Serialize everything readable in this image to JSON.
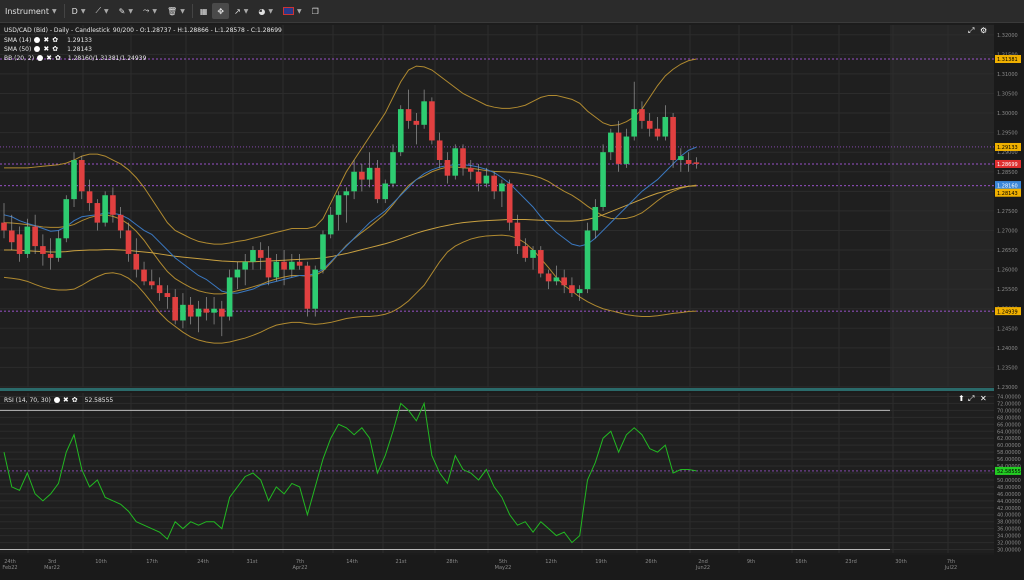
{
  "toolbar": {
    "instrument_label": "Instrument",
    "timeframe_label": "D"
  },
  "main_pane": {
    "header": "USD/CAD (Bid) - Daily - Candlestick",
    "ohlc": "90/200 - O:1.28737 - H:1.28866 - L:1.28578 - C:1.28699",
    "sma14_label": "SMA (14)",
    "sma14_value": "1.29133",
    "sma50_label": "SMA (50)",
    "sma50_value": "1.28143",
    "bb_label": "BB (20, 2)",
    "bb_value": "1.28160/1.31381/1.24939",
    "price_ticks": [
      "1.32000",
      "1.31500",
      "1.31000",
      "1.30500",
      "1.30000",
      "1.29500",
      "1.29000",
      "1.28500",
      "1.28000",
      "1.27500",
      "1.27000",
      "1.26500",
      "1.26000",
      "1.25500",
      "1.25000",
      "1.24500",
      "1.24000",
      "1.23500",
      "1.23000"
    ],
    "markers": [
      {
        "label": "1.31381",
        "color": "#f0b000",
        "text_color": "#000000"
      },
      {
        "label": "1.29133",
        "color": "#f0b000",
        "text_color": "#000000"
      },
      {
        "label": "1.28699",
        "color": "#e03030",
        "text_color": "#ffffff"
      },
      {
        "label": "1.28160",
        "color": "#3a86d8",
        "text_color": "#ffffff"
      },
      {
        "label": "1.28143",
        "color": "#f0b000",
        "text_color": "#000000"
      },
      {
        "label": "1.24939",
        "color": "#f0b000",
        "text_color": "#000000"
      }
    ]
  },
  "rsi_pane": {
    "label": "RSI (14, 70, 30)",
    "value": "52.58555",
    "ticks": [
      "74.00000",
      "72.00000",
      "70.00000",
      "68.00000",
      "66.00000",
      "64.00000",
      "62.00000",
      "60.00000",
      "58.00000",
      "56.00000",
      "54.00000",
      "52.00000",
      "50.00000",
      "48.00000",
      "46.00000",
      "44.00000",
      "42.00000",
      "40.00000",
      "38.00000",
      "36.00000",
      "34.00000",
      "32.00000",
      "30.00000"
    ],
    "marker": {
      "label": "52.58555",
      "color": "#22cc22"
    }
  },
  "x_axis": {
    "labels": [
      "24th",
      "3rd",
      "10th",
      "17th",
      "24th",
      "31st",
      "7th",
      "14th",
      "21st",
      "28th",
      "5th",
      "12th",
      "19th",
      "26th",
      "2nd",
      "9th",
      "16th",
      "23rd",
      "30th",
      "7th"
    ],
    "sub_labels": [
      "Feb22",
      "Mar22",
      "",
      "",
      "",
      "",
      "Apr22",
      "",
      "",
      "",
      "May22",
      "",
      "",
      "",
      "Jun22",
      "",
      "",
      "",
      "",
      "Jul22"
    ]
  },
  "chart_data": {
    "type": "candlestick",
    "instrument": "USD/CAD (Bid)",
    "timeframe": "Daily",
    "ylim": [
      1.23,
      1.3225
    ],
    "candles": [
      [
        1.272,
        1.277,
        1.268,
        1.27
      ],
      [
        1.27,
        1.274,
        1.265,
        1.267
      ],
      [
        1.269,
        1.271,
        1.262,
        1.264
      ],
      [
        1.264,
        1.273,
        1.263,
        1.271
      ],
      [
        1.271,
        1.274,
        1.264,
        1.266
      ],
      [
        1.266,
        1.269,
        1.261,
        1.264
      ],
      [
        1.264,
        1.268,
        1.26,
        1.263
      ],
      [
        1.263,
        1.27,
        1.262,
        1.268
      ],
      [
        1.268,
        1.279,
        1.267,
        1.278
      ],
      [
        1.278,
        1.29,
        1.276,
        1.288
      ],
      [
        1.288,
        1.289,
        1.278,
        1.28
      ],
      [
        1.28,
        1.283,
        1.275,
        1.277
      ],
      [
        1.277,
        1.278,
        1.27,
        1.272
      ],
      [
        1.272,
        1.28,
        1.271,
        1.279
      ],
      [
        1.279,
        1.281,
        1.272,
        1.274
      ],
      [
        1.274,
        1.276,
        1.268,
        1.27
      ],
      [
        1.27,
        1.272,
        1.262,
        1.264
      ],
      [
        1.264,
        1.268,
        1.258,
        1.26
      ],
      [
        1.26,
        1.262,
        1.256,
        1.257
      ],
      [
        1.257,
        1.26,
        1.255,
        1.256
      ],
      [
        1.256,
        1.258,
        1.252,
        1.254
      ],
      [
        1.254,
        1.256,
        1.25,
        1.253
      ],
      [
        1.253,
        1.255,
        1.246,
        1.247
      ],
      [
        1.247,
        1.254,
        1.245,
        1.251
      ],
      [
        1.251,
        1.253,
        1.246,
        1.248
      ],
      [
        1.248,
        1.252,
        1.244,
        1.25
      ],
      [
        1.25,
        1.253,
        1.247,
        1.249
      ],
      [
        1.249,
        1.253,
        1.246,
        1.25
      ],
      [
        1.25,
        1.252,
        1.243,
        1.248
      ],
      [
        1.248,
        1.26,
        1.247,
        1.258
      ],
      [
        1.258,
        1.262,
        1.255,
        1.26
      ],
      [
        1.26,
        1.264,
        1.256,
        1.262
      ],
      [
        1.262,
        1.266,
        1.26,
        1.265
      ],
      [
        1.265,
        1.267,
        1.26,
        1.263
      ],
      [
        1.263,
        1.266,
        1.256,
        1.258
      ],
      [
        1.258,
        1.264,
        1.257,
        1.262
      ],
      [
        1.262,
        1.265,
        1.256,
        1.26
      ],
      [
        1.26,
        1.264,
        1.258,
        1.262
      ],
      [
        1.262,
        1.264,
        1.26,
        1.261
      ],
      [
        1.261,
        1.262,
        1.248,
        1.25
      ],
      [
        1.25,
        1.261,
        1.248,
        1.26
      ],
      [
        1.26,
        1.27,
        1.259,
        1.269
      ],
      [
        1.269,
        1.276,
        1.268,
        1.274
      ],
      [
        1.274,
        1.28,
        1.27,
        1.279
      ],
      [
        1.279,
        1.281,
        1.272,
        1.28
      ],
      [
        1.28,
        1.288,
        1.278,
        1.285
      ],
      [
        1.285,
        1.287,
        1.28,
        1.283
      ],
      [
        1.283,
        1.29,
        1.281,
        1.286
      ],
      [
        1.286,
        1.288,
        1.277,
        1.278
      ],
      [
        1.278,
        1.283,
        1.277,
        1.282
      ],
      [
        1.282,
        1.292,
        1.281,
        1.29
      ],
      [
        1.29,
        1.302,
        1.289,
        1.301
      ],
      [
        1.301,
        1.306,
        1.296,
        1.298
      ],
      [
        1.298,
        1.3,
        1.292,
        1.297
      ],
      [
        1.297,
        1.306,
        1.296,
        1.303
      ],
      [
        1.303,
        1.304,
        1.292,
        1.293
      ],
      [
        1.293,
        1.295,
        1.286,
        1.288
      ],
      [
        1.288,
        1.29,
        1.282,
        1.284
      ],
      [
        1.284,
        1.292,
        1.283,
        1.291
      ],
      [
        1.291,
        1.292,
        1.284,
        1.286
      ],
      [
        1.286,
        1.288,
        1.283,
        1.285
      ],
      [
        1.285,
        1.287,
        1.28,
        1.282
      ],
      [
        1.282,
        1.286,
        1.281,
        1.284
      ],
      [
        1.284,
        1.285,
        1.278,
        1.28
      ],
      [
        1.28,
        1.283,
        1.276,
        1.282
      ],
      [
        1.282,
        1.283,
        1.27,
        1.272
      ],
      [
        1.272,
        1.274,
        1.264,
        1.266
      ],
      [
        1.266,
        1.268,
        1.262,
        1.263
      ],
      [
        1.263,
        1.266,
        1.26,
        1.265
      ],
      [
        1.265,
        1.266,
        1.258,
        1.259
      ],
      [
        1.259,
        1.26,
        1.255,
        1.257
      ],
      [
        1.257,
        1.261,
        1.256,
        1.258
      ],
      [
        1.258,
        1.26,
        1.254,
        1.256
      ],
      [
        1.256,
        1.258,
        1.253,
        1.254
      ],
      [
        1.254,
        1.256,
        1.252,
        1.255
      ],
      [
        1.255,
        1.272,
        1.254,
        1.27
      ],
      [
        1.27,
        1.278,
        1.268,
        1.276
      ],
      [
        1.276,
        1.292,
        1.275,
        1.29
      ],
      [
        1.29,
        1.296,
        1.288,
        1.295
      ],
      [
        1.295,
        1.298,
        1.285,
        1.287
      ],
      [
        1.287,
        1.296,
        1.286,
        1.294
      ],
      [
        1.294,
        1.308,
        1.293,
        1.301
      ],
      [
        1.301,
        1.303,
        1.296,
        1.298
      ],
      [
        1.298,
        1.3,
        1.294,
        1.296
      ],
      [
        1.296,
        1.299,
        1.293,
        1.294
      ],
      [
        1.294,
        1.302,
        1.293,
        1.299
      ],
      [
        1.299,
        1.3,
        1.286,
        1.288
      ],
      [
        1.288,
        1.291,
        1.285,
        1.289
      ],
      [
        1.288,
        1.29,
        1.285,
        1.287
      ],
      [
        1.2874,
        1.2887,
        1.2858,
        1.287
      ]
    ],
    "rsi_values": [
      58,
      48,
      47,
      52,
      46,
      44,
      46,
      49,
      58,
      63,
      53,
      48,
      50,
      45,
      44,
      43,
      41,
      38,
      37,
      36,
      35,
      33,
      38,
      36,
      38,
      37,
      38,
      38,
      36,
      45,
      48,
      51,
      52,
      50,
      44,
      48,
      46,
      49,
      48,
      40,
      48,
      56,
      62,
      66,
      65,
      63,
      65,
      62,
      52,
      57,
      64,
      72,
      70,
      67,
      72,
      57,
      52,
      49,
      57,
      53,
      52,
      50,
      53,
      48,
      45,
      40,
      37,
      38,
      35,
      38,
      36,
      34,
      35,
      32,
      34,
      50,
      55,
      62,
      64,
      58,
      63,
      65,
      63,
      59,
      58,
      60,
      52,
      53,
      53,
      52.6
    ],
    "sma14": [
      1.274,
      1.2735,
      1.2725,
      1.2718,
      1.2712,
      1.2705,
      1.2698,
      1.27,
      1.271,
      1.2725,
      1.2735,
      1.2738,
      1.274,
      1.2745,
      1.2744,
      1.274,
      1.273,
      1.2715,
      1.27,
      1.269,
      1.267,
      1.265,
      1.263,
      1.2615,
      1.26,
      1.2585,
      1.2575,
      1.256,
      1.2545,
      1.254,
      1.254,
      1.2545,
      1.255,
      1.256,
      1.2565,
      1.257,
      1.2575,
      1.258,
      1.2585,
      1.2585,
      1.259,
      1.26,
      1.262,
      1.264,
      1.266,
      1.268,
      1.27,
      1.272,
      1.2735,
      1.275,
      1.277,
      1.279,
      1.281,
      1.283,
      1.2845,
      1.2855,
      1.2862,
      1.2866,
      1.2868,
      1.2868,
      1.2866,
      1.2862,
      1.2856,
      1.2848,
      1.2835,
      1.282,
      1.28,
      1.278,
      1.276,
      1.2735,
      1.2715,
      1.2695,
      1.268,
      1.2665,
      1.266,
      1.2665,
      1.268,
      1.27,
      1.272,
      1.274,
      1.276,
      1.278,
      1.28,
      1.2815,
      1.283,
      1.285,
      1.287,
      1.289,
      1.2905,
      1.2913
    ],
    "sma50": [
      1.265,
      1.265,
      1.2649,
      1.2648,
      1.2647,
      1.2646,
      1.2645,
      1.2645,
      1.2646,
      1.2648,
      1.2649,
      1.265,
      1.265,
      1.2651,
      1.2651,
      1.265,
      1.2649,
      1.2647,
      1.2645,
      1.2643,
      1.264,
      1.2637,
      1.2634,
      1.2632,
      1.263,
      1.2628,
      1.2626,
      1.2624,
      1.2622,
      1.2621,
      1.262,
      1.262,
      1.262,
      1.2621,
      1.2622,
      1.2623,
      1.2624,
      1.2625,
      1.2626,
      1.2627,
      1.2628,
      1.263,
      1.2633,
      1.2637,
      1.2641,
      1.2646,
      1.2651,
      1.2656,
      1.2661,
      1.2666,
      1.2672,
      1.2679,
      1.2686,
      1.2693,
      1.2699,
      1.2704,
      1.2709,
      1.2713,
      1.2717,
      1.272,
      1.2722,
      1.2724,
      1.2725,
      1.2726,
      1.2727,
      1.2728,
      1.2728,
      1.2728,
      1.2727,
      1.2726,
      1.2725,
      1.2724,
      1.2724,
      1.2724,
      1.2725,
      1.2728,
      1.2733,
      1.274,
      1.2748,
      1.2756,
      1.2764,
      1.2772,
      1.278,
      1.2788,
      1.2795,
      1.28,
      1.2805,
      1.281,
      1.2813,
      1.2814
    ],
    "bb_upper": [
      1.286,
      1.286,
      1.286,
      1.286,
      1.2862,
      1.2864,
      1.2866,
      1.2868,
      1.2872,
      1.288,
      1.289,
      1.2895,
      1.2895,
      1.289,
      1.288,
      1.287,
      1.2855,
      1.2835,
      1.281,
      1.278,
      1.275,
      1.272,
      1.27,
      1.269,
      1.268,
      1.2672,
      1.2668,
      1.2665,
      1.2665,
      1.2668,
      1.2672,
      1.2675,
      1.268,
      1.2685,
      1.269,
      1.2695,
      1.27,
      1.2705,
      1.2705,
      1.2705,
      1.271,
      1.273,
      1.277,
      1.281,
      1.285,
      1.288,
      1.291,
      1.294,
      1.297,
      1.3,
      1.304,
      1.308,
      1.311,
      1.312,
      1.3118,
      1.311,
      1.3095,
      1.308,
      1.3065,
      1.305,
      1.304,
      1.303,
      1.302,
      1.3015,
      1.3012,
      1.3012,
      1.3015,
      1.302,
      1.303,
      1.304,
      1.3045,
      1.3045,
      1.304,
      1.3035,
      1.3025,
      1.3005,
      1.299,
      1.2975,
      1.2968,
      1.297,
      1.2978,
      1.299,
      1.301,
      1.304,
      1.307,
      1.3095,
      1.3112,
      1.3125,
      1.3134,
      1.3138
    ],
    "bb_lower": [
      1.258,
      1.2578,
      1.2575,
      1.257,
      1.2562,
      1.2555,
      1.255,
      1.2548,
      1.2548,
      1.255,
      1.256,
      1.2572,
      1.2582,
      1.259,
      1.2592,
      1.2588,
      1.2578,
      1.2562,
      1.254,
      1.2515,
      1.249,
      1.247,
      1.2455,
      1.244,
      1.2428,
      1.242,
      1.2415,
      1.2412,
      1.2412,
      1.2415,
      1.242,
      1.2425,
      1.2432,
      1.244,
      1.245,
      1.2458,
      1.2462,
      1.2465,
      1.2465,
      1.2462,
      1.246,
      1.2462,
      1.2465,
      1.247,
      1.2475,
      1.2478,
      1.248,
      1.248,
      1.2482,
      1.2486,
      1.2493,
      1.2505,
      1.252,
      1.254,
      1.256,
      1.259,
      1.262,
      1.2645,
      1.266,
      1.267,
      1.2678,
      1.2683,
      1.2686,
      1.2687,
      1.2688,
      1.2686,
      1.268,
      1.2668,
      1.265,
      1.2628,
      1.2605,
      1.258,
      1.256,
      1.2545,
      1.253,
      1.2518,
      1.2508,
      1.25,
      1.2495,
      1.249,
      1.2485,
      1.2482,
      1.248,
      1.248,
      1.2482,
      1.2485,
      1.2488,
      1.249,
      1.2493,
      1.2494
    ],
    "bb_middle": [
      1.272,
      1.2719,
      1.2717,
      1.2715,
      1.2712,
      1.2709,
      1.2708,
      1.2708,
      1.271,
      1.2715,
      1.2725,
      1.2733,
      1.2738,
      1.274,
      1.2736,
      1.2729,
      1.2716,
      1.2698,
      1.2675,
      1.2647,
      1.262,
      1.2595,
      1.2577,
      1.2565,
      1.2554,
      1.2546,
      1.2541,
      1.2538,
      1.2538,
      1.2541,
      1.2546,
      1.255,
      1.2556,
      1.2562,
      1.257,
      1.2576,
      1.2581,
      1.2585,
      1.2585,
      1.2583,
      1.2585,
      1.2596,
      1.2617,
      1.264,
      1.2662,
      1.2679,
      1.2695,
      1.271,
      1.2726,
      1.2743,
      1.2766,
      1.2792,
      1.2815,
      1.283,
      1.2839,
      1.285,
      1.2857,
      1.2862,
      1.2862,
      1.286,
      1.2859,
      1.2856,
      1.2853,
      1.2851,
      1.285,
      1.2849,
      1.2847,
      1.2844,
      1.284,
      1.2834,
      1.2825,
      1.2812,
      1.28,
      1.279,
      1.2777,
      1.2762,
      1.2749,
      1.2737,
      1.2731,
      1.273,
      1.2731,
      1.2736,
      1.2745,
      1.276,
      1.2776,
      1.279,
      1.28,
      1.2808,
      1.2813,
      1.2816
    ]
  }
}
